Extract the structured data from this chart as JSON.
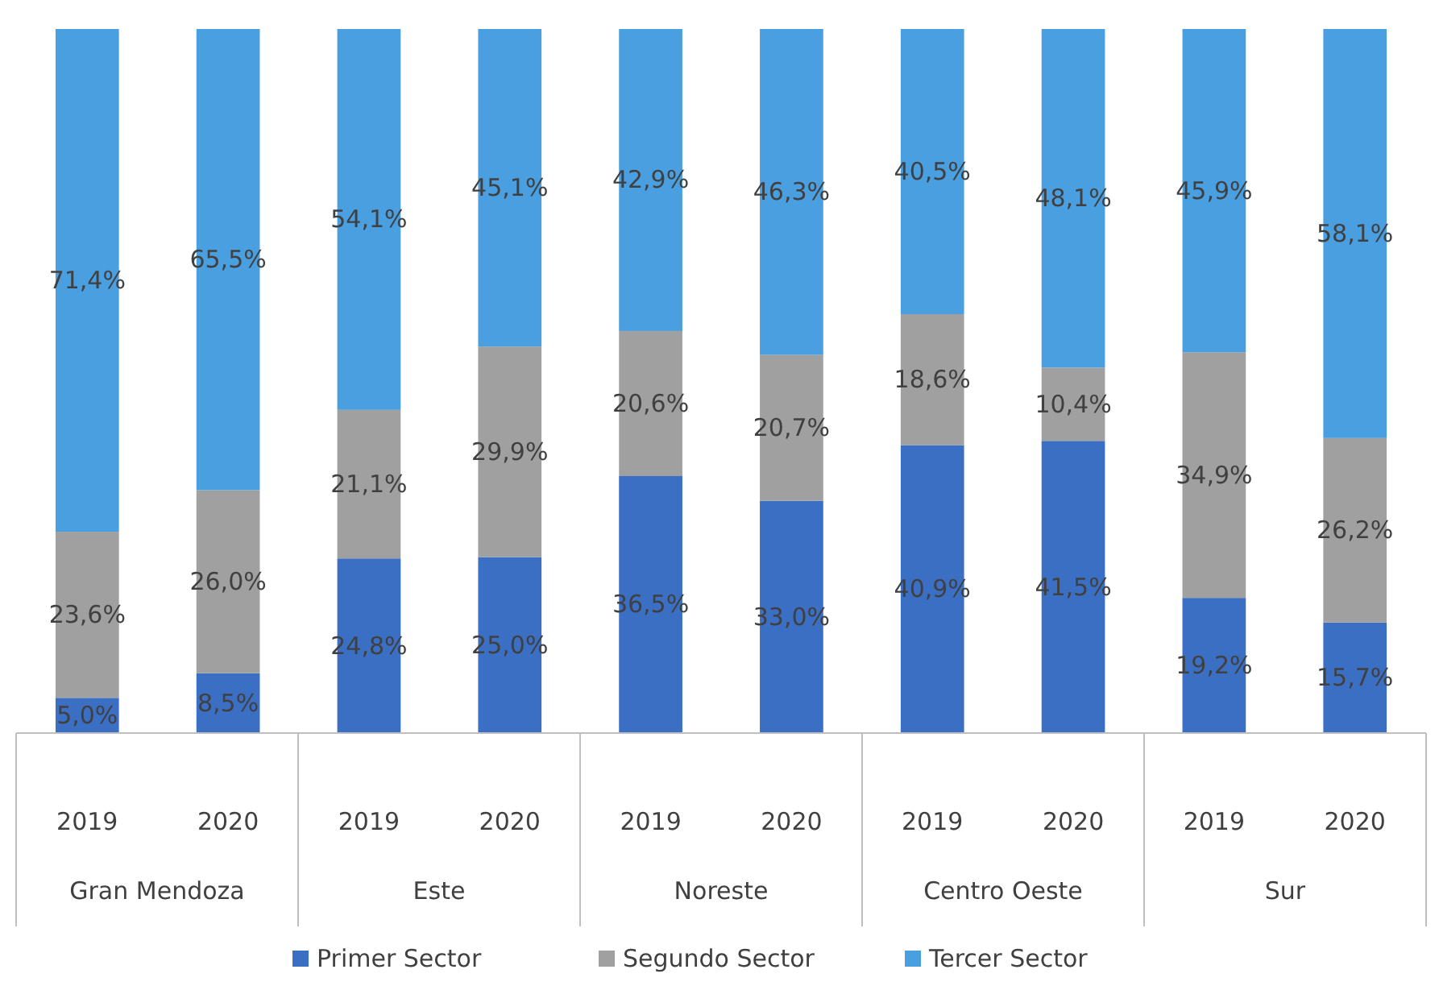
{
  "chart_data": {
    "type": "bar",
    "stacked": true,
    "categories": [
      "2019",
      "2020",
      "2019",
      "2020",
      "2019",
      "2020",
      "2019",
      "2020",
      "2019",
      "2020"
    ],
    "annotations": [
      "Gran Mendoza",
      "Este",
      "Noreste",
      "Centro Oeste",
      "Sur"
    ],
    "series": [
      {
        "name": "Primer Sector",
        "color": "#3a6fc4",
        "values": [
          5.0,
          8.5,
          24.8,
          25.0,
          36.5,
          33.0,
          40.9,
          41.5,
          19.2,
          15.7
        ],
        "value_labels": [
          "5,0%",
          "8,5%",
          "24,8%",
          "25,0%",
          "36,5%",
          "33,0%",
          "40,9%",
          "41,5%",
          "19,2%",
          "15,7%"
        ]
      },
      {
        "name": "Segundo Sector",
        "color": "#a0a0a0",
        "values": [
          23.6,
          26.0,
          21.1,
          29.9,
          20.6,
          20.7,
          18.6,
          10.4,
          34.9,
          26.2
        ],
        "value_labels": [
          "23,6%",
          "26,0%",
          "21,1%",
          "29,9%",
          "20,6%",
          "20,7%",
          "18,6%",
          "10,4%",
          "34,9%",
          "26,2%"
        ]
      },
      {
        "name": "Tercer Sector",
        "color": "#4a9fe0",
        "values": [
          71.4,
          65.5,
          54.1,
          45.1,
          42.9,
          46.3,
          40.5,
          48.1,
          45.9,
          58.1
        ],
        "value_labels": [
          "71,4%",
          "65,5%",
          "54,1%",
          "45,1%",
          "42,9%",
          "46,3%",
          "40,5%",
          "48,1%",
          "45,9%",
          "58,1%"
        ]
      }
    ],
    "legend": "bottom"
  }
}
